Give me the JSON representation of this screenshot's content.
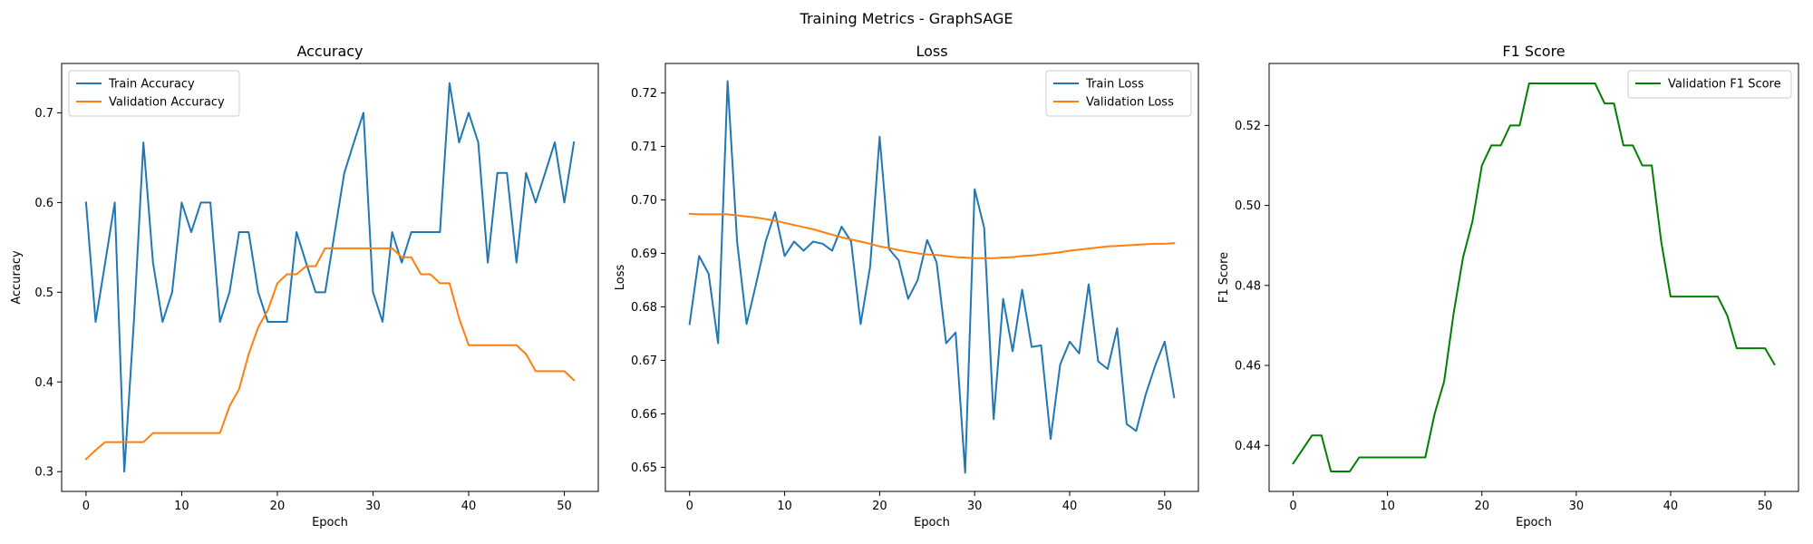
{
  "figure_title": "Training Metrics - GraphSAGE",
  "colors": {
    "blue": "#1f77b4",
    "orange": "#ff7f0e",
    "green": "#008000",
    "axis": "#000000",
    "legend_border": "#cccccc"
  },
  "chart_data": [
    {
      "type": "line",
      "title": "Accuracy",
      "xlabel": "Epoch",
      "ylabel": "Accuracy",
      "xlim": [
        -2.55,
        53.55
      ],
      "ylim": [
        0.278,
        0.755
      ],
      "xticks": [
        0,
        10,
        20,
        30,
        40,
        50
      ],
      "yticks": [
        0.3,
        0.4,
        0.5,
        0.6,
        0.7
      ],
      "ytick_labels": [
        "0.3",
        "0.4",
        "0.5",
        "0.6",
        "0.7"
      ],
      "legend": "upper left",
      "grid": false,
      "x": [
        0,
        1,
        2,
        3,
        4,
        5,
        6,
        7,
        8,
        9,
        10,
        11,
        12,
        13,
        14,
        15,
        16,
        17,
        18,
        19,
        20,
        21,
        22,
        23,
        24,
        25,
        26,
        27,
        28,
        29,
        30,
        31,
        32,
        33,
        34,
        35,
        36,
        37,
        38,
        39,
        40,
        41,
        42,
        43,
        44,
        45,
        46,
        47,
        48,
        49,
        50,
        51
      ],
      "series": [
        {
          "name": "Train Accuracy",
          "color": "#1f77b4",
          "values": [
            0.6,
            0.467,
            0.533,
            0.6,
            0.3,
            0.467,
            0.667,
            0.533,
            0.467,
            0.5,
            0.6,
            0.567,
            0.6,
            0.6,
            0.467,
            0.5,
            0.567,
            0.567,
            0.5,
            0.467,
            0.467,
            0.467,
            0.567,
            0.533,
            0.5,
            0.5,
            0.567,
            0.633,
            0.667,
            0.7,
            0.5,
            0.467,
            0.567,
            0.533,
            0.567,
            0.567,
            0.567,
            0.567,
            0.733,
            0.667,
            0.7,
            0.667,
            0.533,
            0.633,
            0.633,
            0.533,
            0.633,
            0.6,
            0.633,
            0.667,
            0.6,
            0.667
          ]
        },
        {
          "name": "Validation Accuracy",
          "color": "#ff7f0e",
          "values": [
            0.314,
            0.324,
            0.333,
            0.333,
            0.333,
            0.333,
            0.333,
            0.343,
            0.343,
            0.343,
            0.343,
            0.343,
            0.343,
            0.343,
            0.343,
            0.373,
            0.392,
            0.431,
            0.461,
            0.48,
            0.51,
            0.52,
            0.52,
            0.529,
            0.529,
            0.549,
            0.549,
            0.549,
            0.549,
            0.549,
            0.549,
            0.549,
            0.549,
            0.539,
            0.539,
            0.52,
            0.52,
            0.51,
            0.51,
            0.471,
            0.441,
            0.441,
            0.441,
            0.441,
            0.441,
            0.441,
            0.431,
            0.412,
            0.412,
            0.412,
            0.412,
            0.402
          ]
        }
      ]
    },
    {
      "type": "line",
      "title": "Loss",
      "xlabel": "Epoch",
      "ylabel": "Loss",
      "xlim": [
        -2.55,
        53.55
      ],
      "ylim": [
        0.6455,
        0.7255
      ],
      "xticks": [
        0,
        10,
        20,
        30,
        40,
        50
      ],
      "yticks": [
        0.65,
        0.66,
        0.67,
        0.68,
        0.69,
        0.7,
        0.71,
        0.72
      ],
      "ytick_labels": [
        "0.65",
        "0.66",
        "0.67",
        "0.68",
        "0.69",
        "0.70",
        "0.71",
        "0.72"
      ],
      "legend": "upper right",
      "grid": false,
      "x": [
        0,
        1,
        2,
        3,
        4,
        5,
        6,
        7,
        8,
        9,
        10,
        11,
        12,
        13,
        14,
        15,
        16,
        17,
        18,
        19,
        20,
        21,
        22,
        23,
        24,
        25,
        26,
        27,
        28,
        29,
        30,
        31,
        32,
        33,
        34,
        35,
        36,
        37,
        38,
        39,
        40,
        41,
        42,
        43,
        44,
        45,
        46,
        47,
        48,
        49,
        50,
        51
      ],
      "series": [
        {
          "name": "Train Loss",
          "color": "#1f77b4",
          "values": [
            0.6768,
            0.6895,
            0.6862,
            0.6732,
            0.7222,
            0.6922,
            0.6768,
            0.6843,
            0.6922,
            0.6977,
            0.6895,
            0.6922,
            0.6905,
            0.6922,
            0.6918,
            0.6905,
            0.695,
            0.6922,
            0.6768,
            0.6875,
            0.7118,
            0.6908,
            0.6887,
            0.6815,
            0.685,
            0.6925,
            0.6883,
            0.6732,
            0.6752,
            0.649,
            0.702,
            0.6948,
            0.659,
            0.6815,
            0.6717,
            0.6832,
            0.6725,
            0.6728,
            0.6553,
            0.6692,
            0.6735,
            0.6713,
            0.6842,
            0.6698,
            0.6684,
            0.676,
            0.6581,
            0.6568,
            0.6636,
            0.669,
            0.6735,
            0.6631
          ]
        },
        {
          "name": "Validation Loss",
          "color": "#ff7f0e",
          "values": [
            0.6974,
            0.6973,
            0.6973,
            0.6973,
            0.6973,
            0.6971,
            0.6969,
            0.6967,
            0.6964,
            0.6961,
            0.6957,
            0.6953,
            0.6949,
            0.6945,
            0.694,
            0.6935,
            0.693,
            0.6926,
            0.6922,
            0.6918,
            0.6913,
            0.691,
            0.6906,
            0.6903,
            0.69,
            0.6898,
            0.6897,
            0.6895,
            0.6893,
            0.6892,
            0.6891,
            0.6891,
            0.6891,
            0.6892,
            0.6893,
            0.6895,
            0.6896,
            0.6898,
            0.69,
            0.6902,
            0.6905,
            0.6907,
            0.6909,
            0.6911,
            0.6913,
            0.6914,
            0.6915,
            0.6916,
            0.6917,
            0.6918,
            0.6918,
            0.6919
          ]
        }
      ]
    },
    {
      "type": "line",
      "title": "F1 Score",
      "xlabel": "Epoch",
      "ylabel": "F1 Score",
      "xlim": [
        -2.55,
        53.55
      ],
      "ylim": [
        0.4285,
        0.5355
      ],
      "xticks": [
        0,
        10,
        20,
        30,
        40,
        50
      ],
      "yticks": [
        0.44,
        0.46,
        0.48,
        0.5,
        0.52
      ],
      "ytick_labels": [
        "0.44",
        "0.46",
        "0.48",
        "0.50",
        "0.52"
      ],
      "legend": "upper right",
      "grid": false,
      "x": [
        0,
        1,
        2,
        3,
        4,
        5,
        6,
        7,
        8,
        9,
        10,
        11,
        12,
        13,
        14,
        15,
        16,
        17,
        18,
        19,
        20,
        21,
        22,
        23,
        24,
        25,
        26,
        27,
        28,
        29,
        30,
        31,
        32,
        33,
        34,
        35,
        36,
        37,
        38,
        39,
        40,
        41,
        42,
        43,
        44,
        45,
        46,
        47,
        48,
        49,
        50,
        51
      ],
      "series": [
        {
          "name": "Validation F1 Score",
          "color": "#008000",
          "values": [
            0.4355,
            0.439,
            0.4425,
            0.4425,
            0.4335,
            0.4335,
            0.4335,
            0.437,
            0.437,
            0.437,
            0.437,
            0.437,
            0.437,
            0.437,
            0.437,
            0.448,
            0.456,
            0.473,
            0.487,
            0.496,
            0.51,
            0.515,
            0.515,
            0.52,
            0.52,
            0.5305,
            0.5305,
            0.5305,
            0.5305,
            0.5305,
            0.5305,
            0.5305,
            0.5305,
            0.5255,
            0.5255,
            0.515,
            0.515,
            0.51,
            0.51,
            0.491,
            0.4772,
            0.4772,
            0.4772,
            0.4772,
            0.4772,
            0.4772,
            0.4725,
            0.4643,
            0.4643,
            0.4643,
            0.4643,
            0.4603
          ]
        }
      ]
    }
  ]
}
